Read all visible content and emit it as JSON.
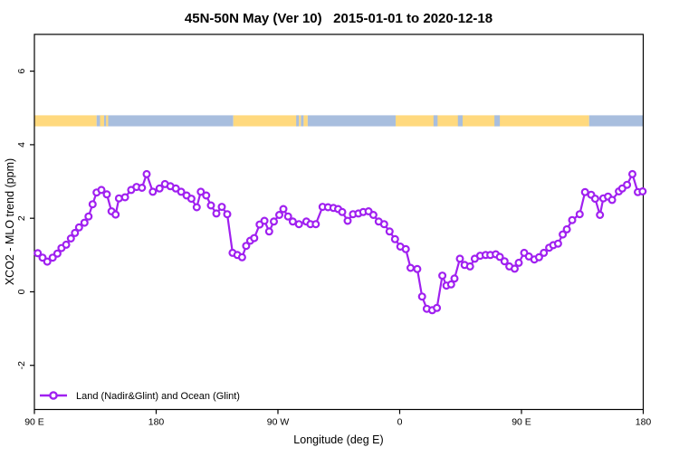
{
  "chart_data": {
    "type": "line",
    "title": "45N-50N May (Ver 10)   2015-01-01 to 2020-12-18",
    "xlabel": "Longitude (deg E)",
    "ylabel": "XCO2 - MLO trend (ppm)",
    "legend": {
      "label": "Land (Nadir&Glint) and Ocean (Glint)",
      "position": "bottom-left-inside"
    },
    "grid": false,
    "x_axis": {
      "min_deg": 90,
      "max_deg": 540,
      "ticks": [
        {
          "deg": 90,
          "label": "90 E"
        },
        {
          "deg": 180,
          "label": "180"
        },
        {
          "deg": 270,
          "label": "90 W"
        },
        {
          "deg": 360,
          "label": "0"
        },
        {
          "deg": 450,
          "label": "90 E"
        },
        {
          "deg": 540,
          "label": "180"
        }
      ]
    },
    "y_axis": {
      "min": -3.2,
      "max": 7.0,
      "ticks": [
        -2,
        0,
        2,
        4,
        6
      ]
    },
    "colors": {
      "series": "#A020F0",
      "land": "#FFD97E",
      "ocean": "#A8BEDE",
      "axis": "#000000"
    },
    "surface_band": {
      "description": "land/ocean strip",
      "y_from": 4.5,
      "y_to": 4.8,
      "segments": [
        {
          "from": 90,
          "to": 136,
          "type": "land"
        },
        {
          "from": 136,
          "to": 237,
          "type": "ocean"
        },
        {
          "from": 237,
          "to": 287,
          "type": "land"
        },
        {
          "from": 287,
          "to": 289,
          "type": "ocean"
        },
        {
          "from": 289,
          "to": 292,
          "type": "land"
        },
        {
          "from": 292,
          "to": 357,
          "type": "ocean"
        },
        {
          "from": 357,
          "to": 500,
          "type": "land"
        },
        {
          "from": 500,
          "to": 540,
          "type": "ocean"
        },
        {
          "from": 138.5,
          "to": 141.5,
          "type": "land"
        },
        {
          "from": 143,
          "to": 144.5,
          "type": "land"
        },
        {
          "from": 283.5,
          "to": 285.5,
          "type": "ocean"
        },
        {
          "from": 385,
          "to": 388,
          "type": "ocean"
        },
        {
          "from": 403,
          "to": 406.5,
          "type": "ocean"
        },
        {
          "from": 430,
          "to": 434,
          "type": "ocean"
        }
      ]
    },
    "series": [
      {
        "name": "Land (Nadir&Glint) and Ocean (Glint)",
        "color": "#A020F0",
        "marker": "open-circle",
        "points": [
          [
            92.5,
            1.05
          ],
          [
            96,
            0.93
          ],
          [
            99.5,
            0.82
          ],
          [
            103.5,
            0.93
          ],
          [
            107,
            1.04
          ],
          [
            110,
            1.19
          ],
          [
            113.5,
            1.28
          ],
          [
            117,
            1.45
          ],
          [
            120,
            1.6
          ],
          [
            123,
            1.75
          ],
          [
            127,
            1.88
          ],
          [
            130,
            2.05
          ],
          [
            133,
            2.38
          ],
          [
            136,
            2.7
          ],
          [
            139.5,
            2.77
          ],
          [
            143.5,
            2.65
          ],
          [
            147,
            2.19
          ],
          [
            150,
            2.1
          ],
          [
            152.5,
            2.54
          ],
          [
            157,
            2.57
          ],
          [
            161.5,
            2.77
          ],
          [
            165.5,
            2.85
          ],
          [
            169.5,
            2.83
          ],
          [
            173,
            3.2
          ],
          [
            177.5,
            2.72
          ],
          [
            182.5,
            2.81
          ],
          [
            186.5,
            2.93
          ],
          [
            190.5,
            2.87
          ],
          [
            194.5,
            2.81
          ],
          [
            198.5,
            2.72
          ],
          [
            202.5,
            2.62
          ],
          [
            206,
            2.53
          ],
          [
            210,
            2.3
          ],
          [
            213,
            2.72
          ],
          [
            217,
            2.62
          ],
          [
            220.5,
            2.35
          ],
          [
            224.5,
            2.13
          ],
          [
            228.5,
            2.31
          ],
          [
            232.5,
            2.11
          ],
          [
            236.5,
            1.06
          ],
          [
            240,
            1.0
          ],
          [
            243.5,
            0.94
          ],
          [
            246.5,
            1.25
          ],
          [
            249.5,
            1.39
          ],
          [
            252.5,
            1.46
          ],
          [
            256.5,
            1.83
          ],
          [
            260,
            1.93
          ],
          [
            263.5,
            1.64
          ],
          [
            267,
            1.91
          ],
          [
            271,
            2.09
          ],
          [
            274,
            2.25
          ],
          [
            277.5,
            2.05
          ],
          [
            281,
            1.91
          ],
          [
            285.5,
            1.84
          ],
          [
            291,
            1.91
          ],
          [
            294,
            1.84
          ],
          [
            298,
            1.84
          ],
          [
            303,
            2.31
          ],
          [
            307,
            2.3
          ],
          [
            311,
            2.28
          ],
          [
            314.5,
            2.25
          ],
          [
            317.5,
            2.17
          ],
          [
            321.5,
            1.93
          ],
          [
            325.5,
            2.11
          ],
          [
            329.5,
            2.13
          ],
          [
            333,
            2.17
          ],
          [
            337,
            2.19
          ],
          [
            340.5,
            2.09
          ],
          [
            344.5,
            1.91
          ],
          [
            348.5,
            1.84
          ],
          [
            352.5,
            1.64
          ],
          [
            356.5,
            1.43
          ],
          [
            360.5,
            1.23
          ],
          [
            364.5,
            1.16
          ],
          [
            368,
            0.65
          ],
          [
            373,
            0.62
          ],
          [
            376.5,
            -0.13
          ],
          [
            380,
            -0.46
          ],
          [
            384,
            -0.5
          ],
          [
            387.5,
            -0.44
          ],
          [
            391.5,
            0.44
          ],
          [
            394.5,
            0.17
          ],
          [
            398,
            0.2
          ],
          [
            400.5,
            0.36
          ],
          [
            404.5,
            0.9
          ],
          [
            408,
            0.73
          ],
          [
            412,
            0.69
          ],
          [
            415.5,
            0.9
          ],
          [
            419.5,
            0.98
          ],
          [
            423.5,
            1.0
          ],
          [
            427,
            1.0
          ],
          [
            431,
            1.02
          ],
          [
            434,
            0.95
          ],
          [
            437.5,
            0.83
          ],
          [
            441,
            0.69
          ],
          [
            445,
            0.63
          ],
          [
            448,
            0.79
          ],
          [
            452,
            1.06
          ],
          [
            455.5,
            0.96
          ],
          [
            459.5,
            0.88
          ],
          [
            463,
            0.94
          ],
          [
            466.5,
            1.06
          ],
          [
            470.5,
            1.2
          ],
          [
            473.5,
            1.27
          ],
          [
            477,
            1.31
          ],
          [
            480.5,
            1.56
          ],
          [
            483.5,
            1.7
          ],
          [
            487.5,
            1.95
          ],
          [
            493,
            2.11
          ],
          [
            497,
            2.71
          ],
          [
            501.5,
            2.64
          ],
          [
            504.5,
            2.53
          ],
          [
            508,
            2.09
          ],
          [
            510.5,
            2.54
          ],
          [
            514,
            2.59
          ],
          [
            517,
            2.5
          ],
          [
            522,
            2.73
          ],
          [
            524.5,
            2.81
          ],
          [
            528,
            2.91
          ],
          [
            532,
            3.2
          ],
          [
            536,
            2.71
          ],
          [
            539.5,
            2.73
          ]
        ]
      }
    ]
  }
}
